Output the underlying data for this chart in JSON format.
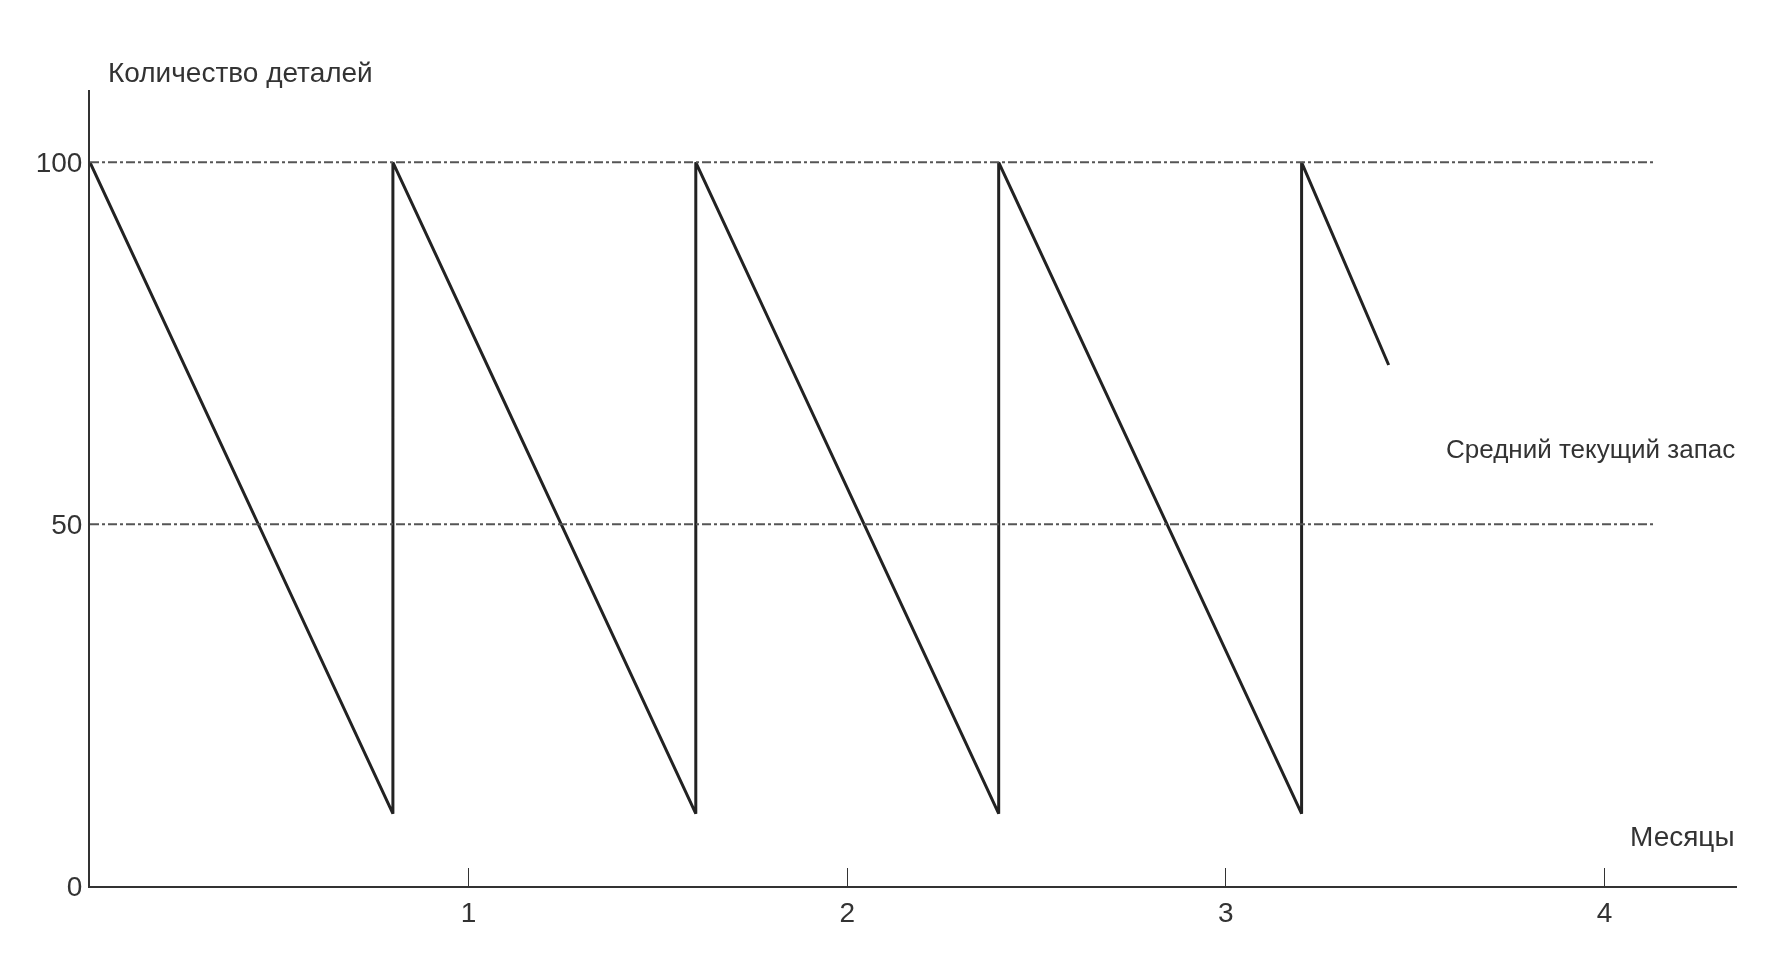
{
  "chart_data": {
    "type": "line",
    "xlabel": "Месяцы",
    "ylabel": "Количество деталей",
    "x": [
      0,
      0.8,
      0.8,
      1.6,
      1.6,
      2.4,
      2.4,
      3.2,
      3.2,
      3.43
    ],
    "series": [
      {
        "color": "#222222",
        "values": [
          100,
          10,
          100,
          10,
          100,
          10,
          100,
          10,
          100,
          72
        ]
      }
    ],
    "xlim": [
      0,
      4.35
    ],
    "ylim": [
      0,
      110
    ],
    "xticks": [
      1,
      2,
      3,
      4
    ],
    "yticks": [
      0,
      50,
      100
    ],
    "ref_lines": [
      {
        "axis": "y",
        "value": 100,
        "label": null,
        "line_style": "dashdot",
        "color": "#555555"
      },
      {
        "axis": "y",
        "value": 50,
        "label": "Средний текущий запас",
        "line_style": "dashdot",
        "color": "#555555"
      }
    ],
    "marker": "none",
    "line_style": "solid"
  }
}
